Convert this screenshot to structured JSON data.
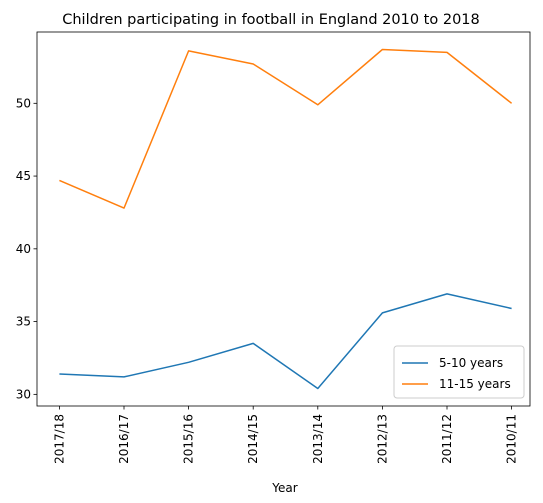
{
  "chart_data": {
    "type": "line",
    "title": "Children participating in football in England 2010 to 2018",
    "xlabel": "Year",
    "ylabel": "",
    "categories": [
      "2017/18",
      "2016/17",
      "2015/16",
      "2014/15",
      "2013/14",
      "2012/13",
      "2011/12",
      "2010/11"
    ],
    "series": [
      {
        "name": "5-10 years",
        "color": "#1f77b4",
        "values": [
          31.4,
          31.2,
          32.2,
          33.5,
          30.4,
          35.6,
          36.9,
          35.9
        ]
      },
      {
        "name": "11-15 years",
        "color": "#ff7f0e",
        "values": [
          44.7,
          42.8,
          53.6,
          52.7,
          49.9,
          53.7,
          53.5,
          50.0
        ]
      }
    ],
    "ylim": [
      29.2,
      54.9
    ],
    "yticks": [
      30,
      35,
      40,
      45,
      50
    ],
    "grid": false,
    "legend_position": "bottom-right"
  }
}
